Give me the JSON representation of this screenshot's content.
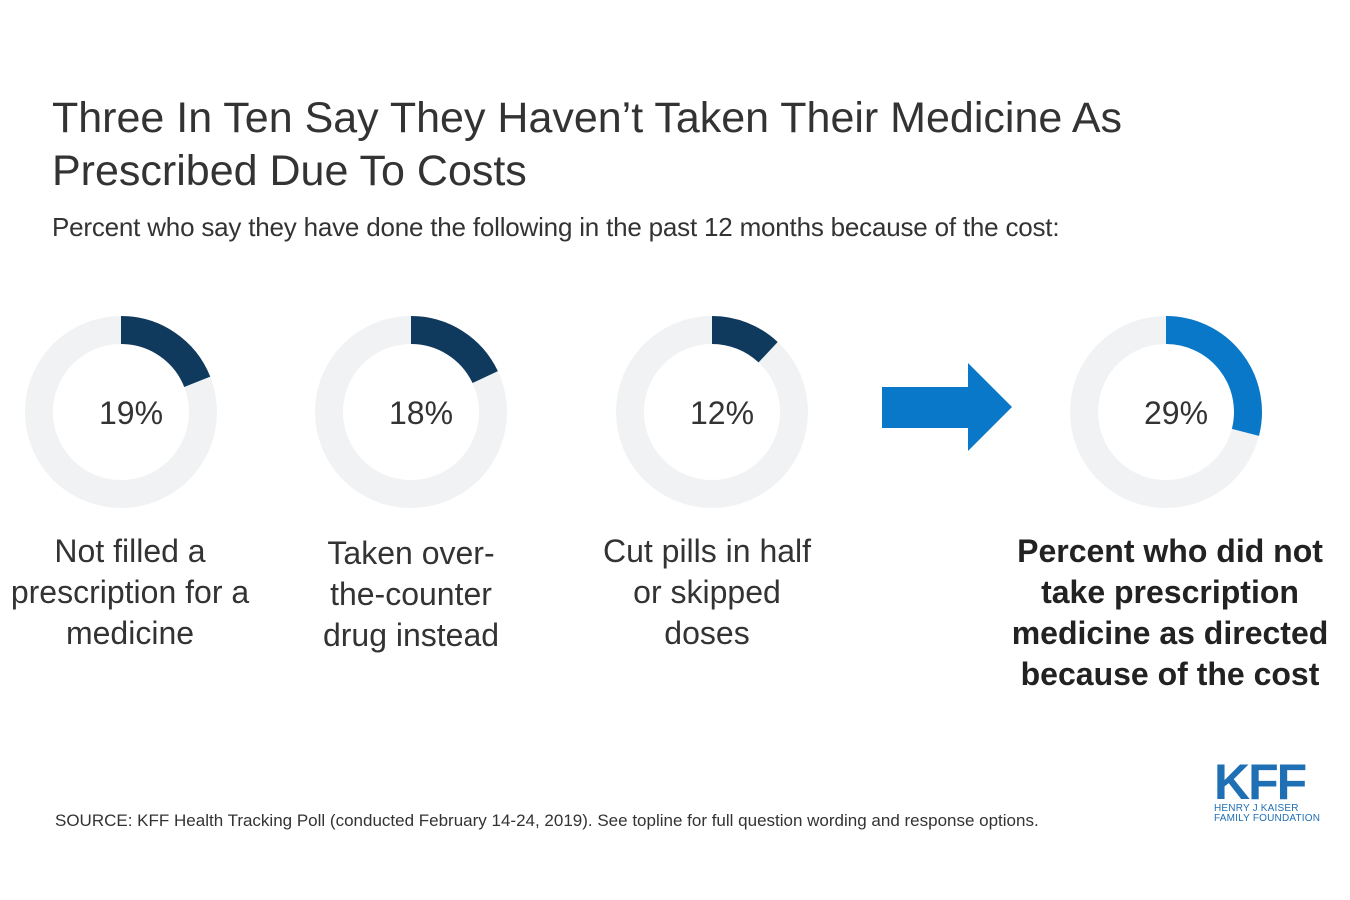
{
  "header": {
    "title": "Three In Ten Say They Haven’t Taken Their Medicine As Prescribed Due To Costs",
    "subtitle": "Percent who say they have done the following in the past 12 months because of the cost:"
  },
  "chart_data": {
    "type": "pie",
    "variant": "donut",
    "title": "Three In Ten Say They Haven’t Taken Their Medicine As Prescribed Due To Costs",
    "subtitle": "Percent who say they have done the following in the past 12 months because of the cost:",
    "unit": "%",
    "items": [
      {
        "label": "Not filled a prescription for a medicine",
        "value": 19,
        "display": "19%",
        "color": "#0f3a5e",
        "total": false
      },
      {
        "label": "Taken over-the-counter drug instead",
        "value": 18,
        "display": "18%",
        "color": "#0f3a5e",
        "total": false
      },
      {
        "label": "Cut pills in half or skipped doses",
        "value": 12,
        "display": "12%",
        "color": "#0f3a5e",
        "total": false
      },
      {
        "label": "Percent who did not take prescription medicine as directed because of the cost",
        "value": 29,
        "display": "29%",
        "color": "#0a78c8",
        "total": true
      }
    ],
    "track_color": "#f1f2f4",
    "arrow_color": "#0a78c8",
    "arrow_icon": "right-arrow-icon"
  },
  "footer": {
    "source": "SOURCE: KFF Health Tracking Poll (conducted February 14-24, 2019). See topline for full question wording and response options.",
    "logo_mark": "KFF",
    "logo_line1": "HENRY J KAISER",
    "logo_line2": "FAMILY FOUNDATION"
  }
}
